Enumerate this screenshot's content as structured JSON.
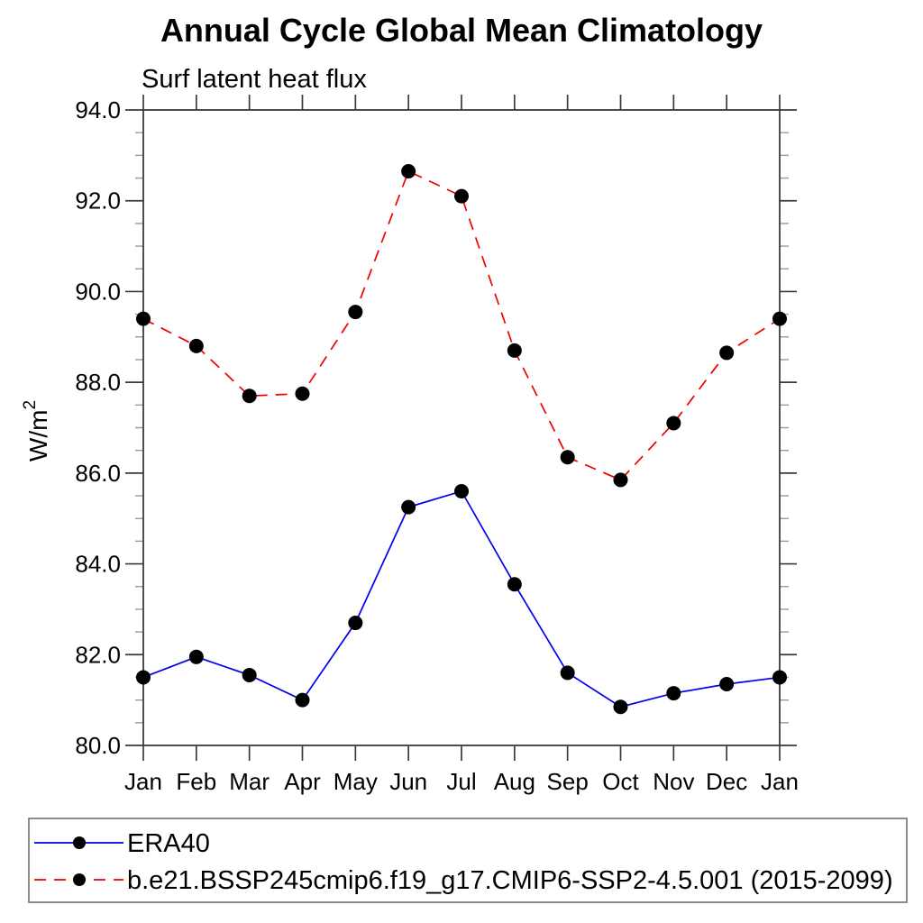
{
  "chart_data": {
    "type": "line",
    "title": "Annual Cycle Global Mean Climatology",
    "subtitle": "Surf latent heat flux",
    "ylabel_base": "W/m",
    "ylabel_exponent": "2",
    "categories": [
      "Jan",
      "Feb",
      "Mar",
      "Apr",
      "May",
      "Jun",
      "Jul",
      "Aug",
      "Sep",
      "Oct",
      "Nov",
      "Dec",
      "Jan"
    ],
    "ylim": [
      80.0,
      94.0
    ],
    "ytick_major_interval": 2.0,
    "ytick_minor_interval": 0.5,
    "ytick_labels": [
      "80.0",
      "82.0",
      "84.0",
      "86.0",
      "88.0",
      "90.0",
      "92.0",
      "94.0"
    ],
    "grid": false,
    "legend_position": "bottom-left-box",
    "series": [
      {
        "name": "ERA40",
        "color": "#0000ee",
        "line_style": "solid",
        "marker": "filled-circle",
        "marker_color": "#000000",
        "values": [
          81.5,
          81.95,
          81.55,
          81.0,
          82.7,
          85.25,
          85.6,
          83.55,
          81.6,
          80.85,
          81.15,
          81.35,
          81.5
        ]
      },
      {
        "name": "b.e21.BSSP245cmip6.f19_g17.CMIP6-SSP2-4.5.001 (2015-2099)",
        "color": "#ee0000",
        "line_style": "dashed",
        "marker": "filled-circle",
        "marker_color": "#000000",
        "values": [
          89.4,
          88.8,
          87.7,
          87.75,
          89.55,
          92.65,
          92.1,
          88.7,
          86.35,
          85.85,
          87.1,
          88.65,
          89.4
        ]
      }
    ]
  },
  "colors": {
    "background": "#ffffff",
    "axis": "#3a3a3a",
    "major_tick": "#3a3a3a",
    "minor_tick": "#9a9a9a",
    "text": "#000000",
    "legend_border": "#6f6f6f"
  }
}
